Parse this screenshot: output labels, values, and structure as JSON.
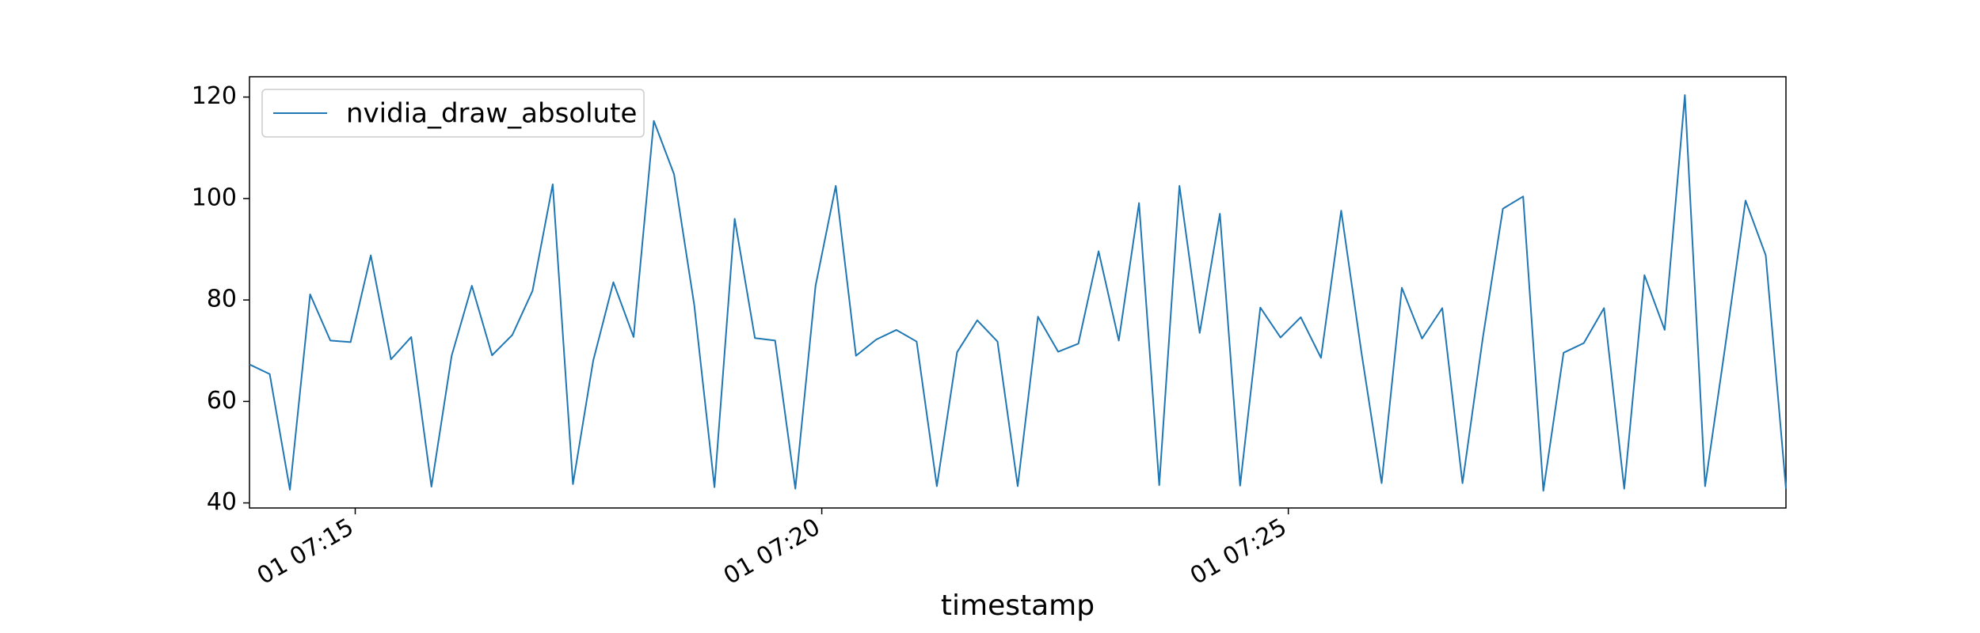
{
  "chart_data": {
    "type": "line",
    "title": "",
    "xlabel": "timestamp",
    "ylabel": "",
    "x_start": "07:13:52",
    "x_step_seconds": 13,
    "x_ticks": [
      {
        "time": "07:15:00",
        "label": "01 07:15"
      },
      {
        "time": "07:20:00",
        "label": "01 07:20"
      },
      {
        "time": "07:25:00",
        "label": "01 07:25"
      }
    ],
    "yticks": [
      40,
      60,
      80,
      100,
      120
    ],
    "ylim": [
      39,
      124
    ],
    "grid": false,
    "legend": {
      "position": "top-left"
    },
    "series": [
      {
        "name": "nvidia_draw_absolute",
        "color": "#1f77b4",
        "values": [
          67.3,
          65.4,
          42.6,
          81.1,
          72.0,
          71.7,
          88.8,
          68.3,
          72.7,
          43.2,
          69.0,
          82.8,
          69.1,
          73.1,
          81.8,
          102.8,
          43.7,
          68.0,
          83.5,
          72.7,
          115.3,
          104.8,
          79.0,
          43.1,
          96.0,
          72.5,
          72.0,
          42.8,
          82.8,
          102.5,
          69.0,
          72.2,
          74.1,
          71.8,
          43.3,
          69.7,
          76.0,
          71.8,
          43.3,
          76.7,
          69.8,
          71.4,
          89.6,
          72.0,
          99.1,
          43.5,
          102.5,
          73.5,
          97.0,
          43.4,
          78.5,
          72.6,
          76.6,
          68.6,
          97.6,
          69.7,
          43.9,
          82.4,
          72.4,
          78.4,
          43.9,
          72.4,
          98.0,
          100.4,
          42.4,
          69.6,
          71.5,
          78.4,
          42.8,
          84.9,
          74.1,
          120.4,
          43.3,
          71.0,
          99.6,
          88.8,
          42.8
        ]
      }
    ]
  }
}
